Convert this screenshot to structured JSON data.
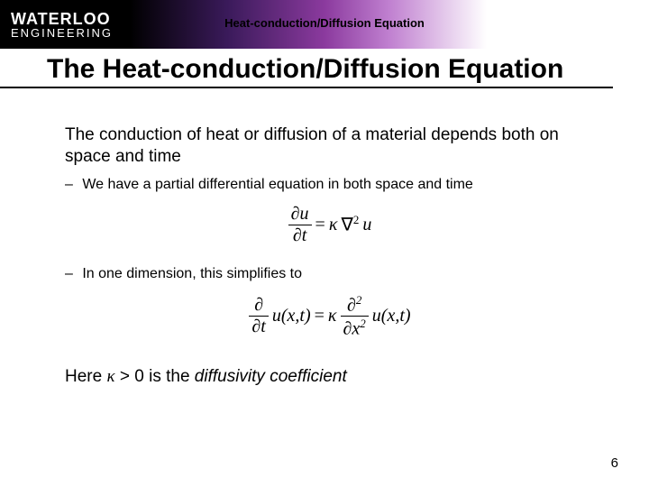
{
  "logo": {
    "line1": "WATERLOO",
    "line2": "ENGINEERING"
  },
  "header_subtitle": "Heat-conduction/Diffusion Equation",
  "title": "The Heat-conduction/Diffusion Equation",
  "para1": "The conduction of heat or diffusion of a material depends both on space and time",
  "bullet1": "We have a partial differential equation in both space and time",
  "eq1": {
    "lhs_num": "∂u",
    "lhs_den": "∂t",
    "eq": "=",
    "kappa": "κ",
    "nabla": "∇",
    "sup": "2",
    "u": "u"
  },
  "bullet2": "In one dimension, this simplifies to",
  "eq2": {
    "lhs_frac_num": "∂",
    "lhs_frac_den": "∂t",
    "lhs_func": "u(x,t)",
    "eq": "=",
    "kappa": "κ",
    "rhs_frac_num": "∂",
    "rhs_sup": "2",
    "rhs_frac_den": "∂x",
    "rhs_func": "u(x,t)"
  },
  "closing_pre": "Here ",
  "closing_kappa": "κ",
  "closing_mid": " > 0 is the ",
  "closing_term": "diffusivity coefficient",
  "pagenum": "6"
}
